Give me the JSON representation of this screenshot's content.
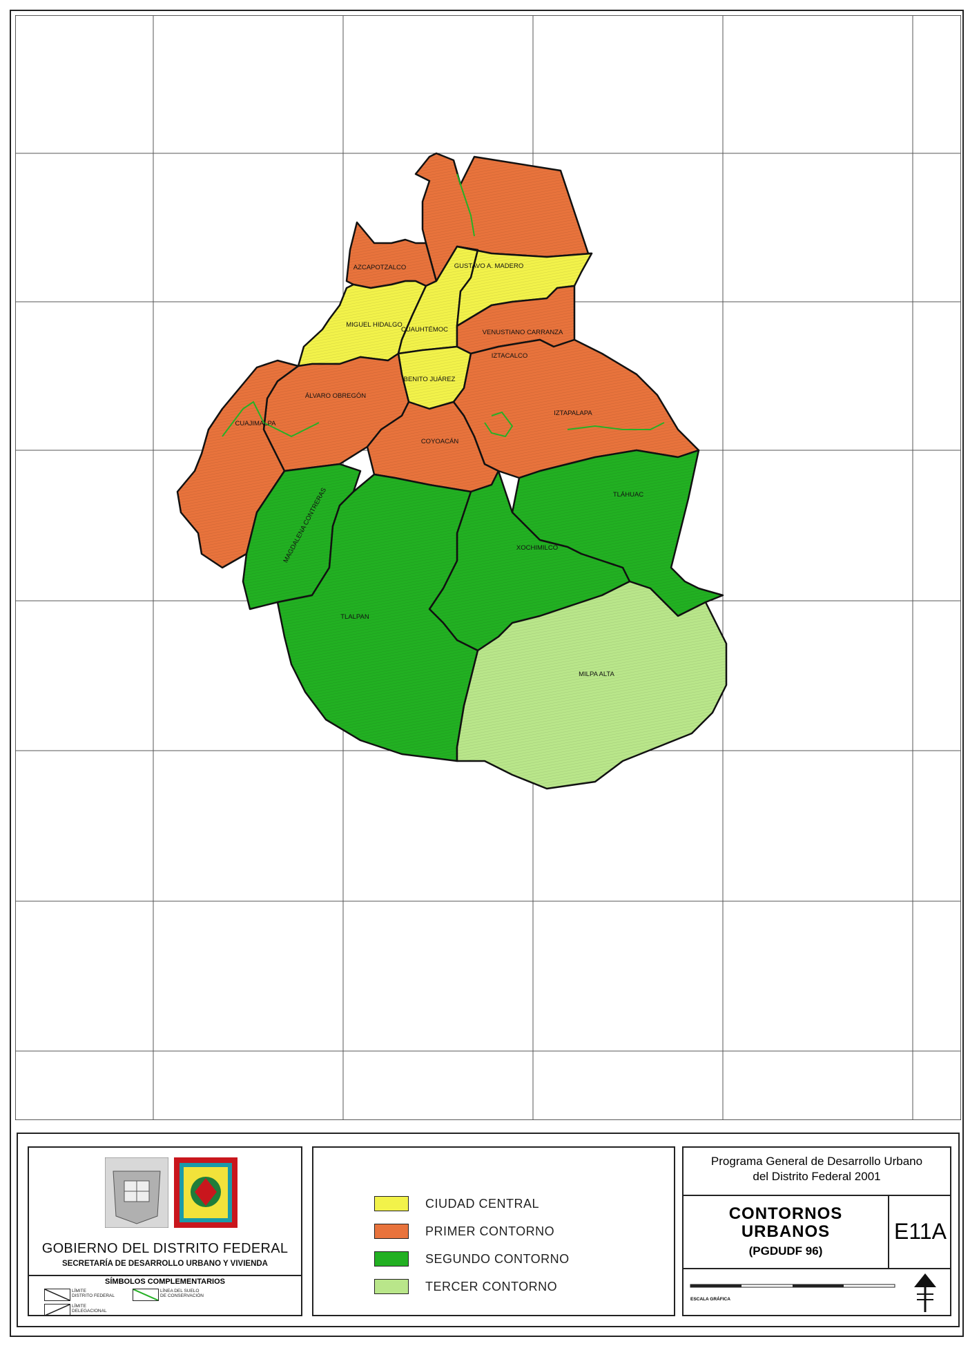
{
  "map": {
    "districts": [
      {
        "key": "azcapotzalco",
        "label": "AZCAPOTZALCO",
        "zone": "primer"
      },
      {
        "key": "gam",
        "label": "GUSTAVO A. MADERO",
        "zone": "primer"
      },
      {
        "key": "miguel_hidalgo",
        "label": "MIGUEL HIDALGO",
        "zone": "central"
      },
      {
        "key": "cuauhtemoc",
        "label": "CUAUHTÉMOC",
        "zone": "central"
      },
      {
        "key": "venustiano",
        "label": "VENUSTIANO CARRANZA",
        "zone": "central"
      },
      {
        "key": "benito",
        "label": "BENITO JUÁREZ",
        "zone": "central"
      },
      {
        "key": "iztacalco",
        "label": "IZTACALCO",
        "zone": "primer"
      },
      {
        "key": "alvaro",
        "label": "ÁLVARO OBREGÓN",
        "zone": "primer"
      },
      {
        "key": "cuajimalpa",
        "label": "CUAJIMALPA",
        "zone": "primer"
      },
      {
        "key": "coyoacan",
        "label": "COYOACÁN",
        "zone": "primer"
      },
      {
        "key": "iztapalapa",
        "label": "IZTAPALAPA",
        "zone": "primer"
      },
      {
        "key": "magdalena",
        "label": "MAGDALENA CONTRERAS",
        "zone": "segundo"
      },
      {
        "key": "tlahuac",
        "label": "TLÁHUAC",
        "zone": "segundo"
      },
      {
        "key": "xochimilco",
        "label": "XOCHIMILCO",
        "zone": "segundo"
      },
      {
        "key": "tlalpan",
        "label": "TLALPAN",
        "zone": "segundo"
      },
      {
        "key": "milpa_alta",
        "label": "MILPA ALTA",
        "zone": "tercer"
      }
    ],
    "colors": {
      "central": "#f2f24a",
      "primer": "#e8733c",
      "segundo": "#22b022",
      "tercer": "#b9e68a"
    }
  },
  "legend": {
    "items": [
      {
        "label": "CIUDAD CENTRAL",
        "zone": "central"
      },
      {
        "label": "PRIMER CONTORNO",
        "zone": "primer"
      },
      {
        "label": "SEGUNDO CONTORNO",
        "zone": "segundo"
      },
      {
        "label": "TERCER CONTORNO",
        "zone": "tercer"
      }
    ]
  },
  "gov": {
    "title": "GOBIERNO DEL DISTRITO FEDERAL",
    "subtitle": "SECRETARÍA DE DESARROLLO URBANO Y VIVIENDA",
    "symbols_title": "SÍMBOLOS COMPLEMENTARIOS",
    "sym_df": "LÍMITE\nDISTRITO FEDERAL",
    "sym_conservacion": "LÍNEA DEL SUELO\nDE CONSERVACIÓN",
    "sym_delegacional": "LÍMITE\nDELEGACIONAL"
  },
  "program": {
    "title_line1": "Programa General de Desarrollo Urbano",
    "title_line2": "del Distrito Federal 2001",
    "map_title_1": "CONTORNOS",
    "map_title_2": "URBANOS",
    "map_title_3": "(PGDUDF 96)",
    "map_code": "E11A",
    "scale_label": "ESCALA GRÁFICA"
  }
}
